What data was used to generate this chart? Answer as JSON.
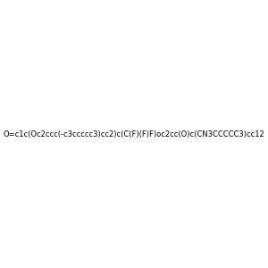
{
  "smiles": "O=c1c(Oc2ccc(-c3ccccc3)cc2)c(C(F)(F)F)oc2cc(O)c(CN3CCCCC3)cc12",
  "title": "",
  "bg_color": "#e8e8e8",
  "bond_color": "#000000",
  "atom_colors": {
    "O": "#ff0000",
    "N": "#0000ff",
    "F": "#ff00ff",
    "C": "#000000"
  },
  "fig_width": 3.0,
  "fig_height": 3.0,
  "dpi": 100
}
